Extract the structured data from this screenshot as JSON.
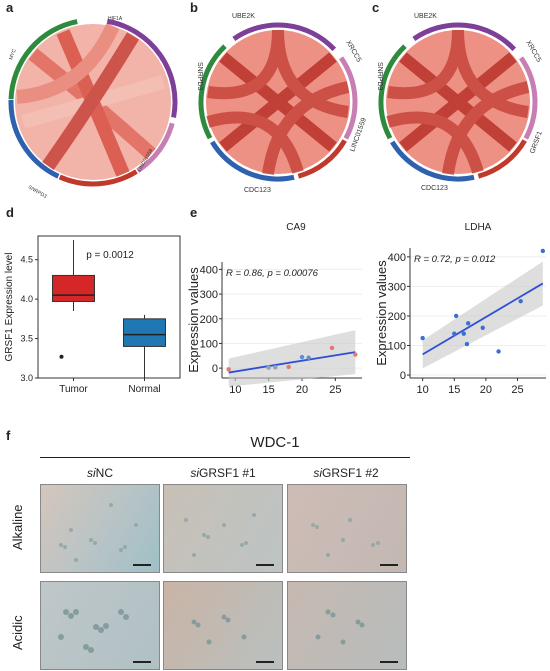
{
  "panels": {
    "a": {
      "label": "a",
      "genes": [
        "HIF1A",
        "LINC01559",
        "SNRPD3",
        "MYC"
      ]
    },
    "b": {
      "label": "b",
      "genes": [
        "UBE2K",
        "XRCC5",
        "LINC01559",
        "CDC123",
        "SNRPD3"
      ]
    },
    "c": {
      "label": "c",
      "genes": [
        "UBE2K",
        "XRCC5",
        "GRSF1",
        "CDC123",
        "SNRPD3"
      ]
    },
    "d": {
      "label": "d"
    },
    "e": {
      "label": "e"
    },
    "f": {
      "label": "f"
    }
  },
  "chart_data": [
    {
      "type": "box",
      "panel": "d",
      "ylabel": "GRSF1 Expression level",
      "categories": [
        "Tumor",
        "Normal"
      ],
      "annotation": "p = 0.0012",
      "ylim": [
        3.0,
        4.8
      ],
      "yticks": [
        "3.0",
        "3.5",
        "4.0",
        "4.5"
      ],
      "boxes": [
        {
          "name": "Tumor",
          "min": 3.85,
          "q1": 3.97,
          "median": 4.05,
          "q3": 4.3,
          "max": 4.75,
          "outliers": [
            3.27
          ],
          "color": "#d62728"
        },
        {
          "name": "Normal",
          "min": 3.0,
          "q1": 3.4,
          "median": 3.55,
          "q3": 3.75,
          "max": 3.8,
          "outliers": [],
          "color": "#1f77b4"
        }
      ]
    },
    {
      "type": "scatter",
      "panel": "e",
      "title": "CA9",
      "ylabel": "Expression values",
      "annotation": "R = 0.86, p = 0.00076",
      "xlim": [
        8,
        29
      ],
      "ylim": [
        -40,
        430
      ],
      "xticks": [
        "10",
        "15",
        "20",
        "25"
      ],
      "yticks": [
        "0",
        "100",
        "200",
        "300",
        "400"
      ],
      "points": [
        {
          "x": 9,
          "y": -5,
          "c": "#e8776b"
        },
        {
          "x": 15,
          "y": 2,
          "c": "#8ea3b8"
        },
        {
          "x": 16,
          "y": 3,
          "c": "#8ea3b8"
        },
        {
          "x": 18,
          "y": 5,
          "c": "#e8776b"
        },
        {
          "x": 20,
          "y": 45,
          "c": "#5b8fd6"
        },
        {
          "x": 21,
          "y": 42,
          "c": "#5b8fd6"
        },
        {
          "x": 24.5,
          "y": 82,
          "c": "#e8776b"
        },
        {
          "x": 28,
          "y": 55,
          "c": "#e8776b"
        }
      ],
      "fit": {
        "x0": 9,
        "y0": -18,
        "x1": 28,
        "y1": 65
      }
    },
    {
      "type": "scatter",
      "panel": "e",
      "title": "LDHA",
      "ylabel": "Expression values",
      "annotation": "R = 0.72, p = 0.012",
      "xlim": [
        8,
        29.5
      ],
      "ylim": [
        -10,
        430
      ],
      "xticks": [
        "10",
        "15",
        "20",
        "25"
      ],
      "yticks": [
        "0",
        "100",
        "200",
        "300",
        "400"
      ],
      "points": [
        {
          "x": 10,
          "y": 125,
          "c": "#3b6fd6"
        },
        {
          "x": 15,
          "y": 140,
          "c": "#3b6fd6"
        },
        {
          "x": 15.3,
          "y": 200,
          "c": "#3b6fd6"
        },
        {
          "x": 16.5,
          "y": 140,
          "c": "#3b6fd6"
        },
        {
          "x": 17,
          "y": 105,
          "c": "#3b6fd6"
        },
        {
          "x": 17.2,
          "y": 175,
          "c": "#3b6fd6"
        },
        {
          "x": 19.5,
          "y": 160,
          "c": "#3b6fd6"
        },
        {
          "x": 22,
          "y": 80,
          "c": "#3b6fd6"
        },
        {
          "x": 25.5,
          "y": 250,
          "c": "#3b6fd6"
        },
        {
          "x": 29,
          "y": 420,
          "c": "#3b6fd6"
        }
      ],
      "fit": {
        "x0": 10,
        "y0": 70,
        "x1": 29,
        "y1": 310
      }
    }
  ],
  "microscopy": {
    "group_label": "WDC-1",
    "columns": [
      {
        "prefix": "si",
        "rest": "NC"
      },
      {
        "prefix": "si",
        "rest": "GRSF1 #1"
      },
      {
        "prefix": "si",
        "rest": "GRSF1 #2"
      }
    ],
    "rows": [
      "Alkaline",
      "Acidic"
    ]
  },
  "colors": {
    "chord_fill": "#e9776b",
    "chord_dark": "#b8322b",
    "ring_green": "#2e8b3e",
    "ring_purple": "#7e3f98",
    "ring_pink": "#c77fb3",
    "ring_red": "#c0392b",
    "ring_blue": "#2f62ae",
    "micro_bg": "#bfc7cc"
  }
}
